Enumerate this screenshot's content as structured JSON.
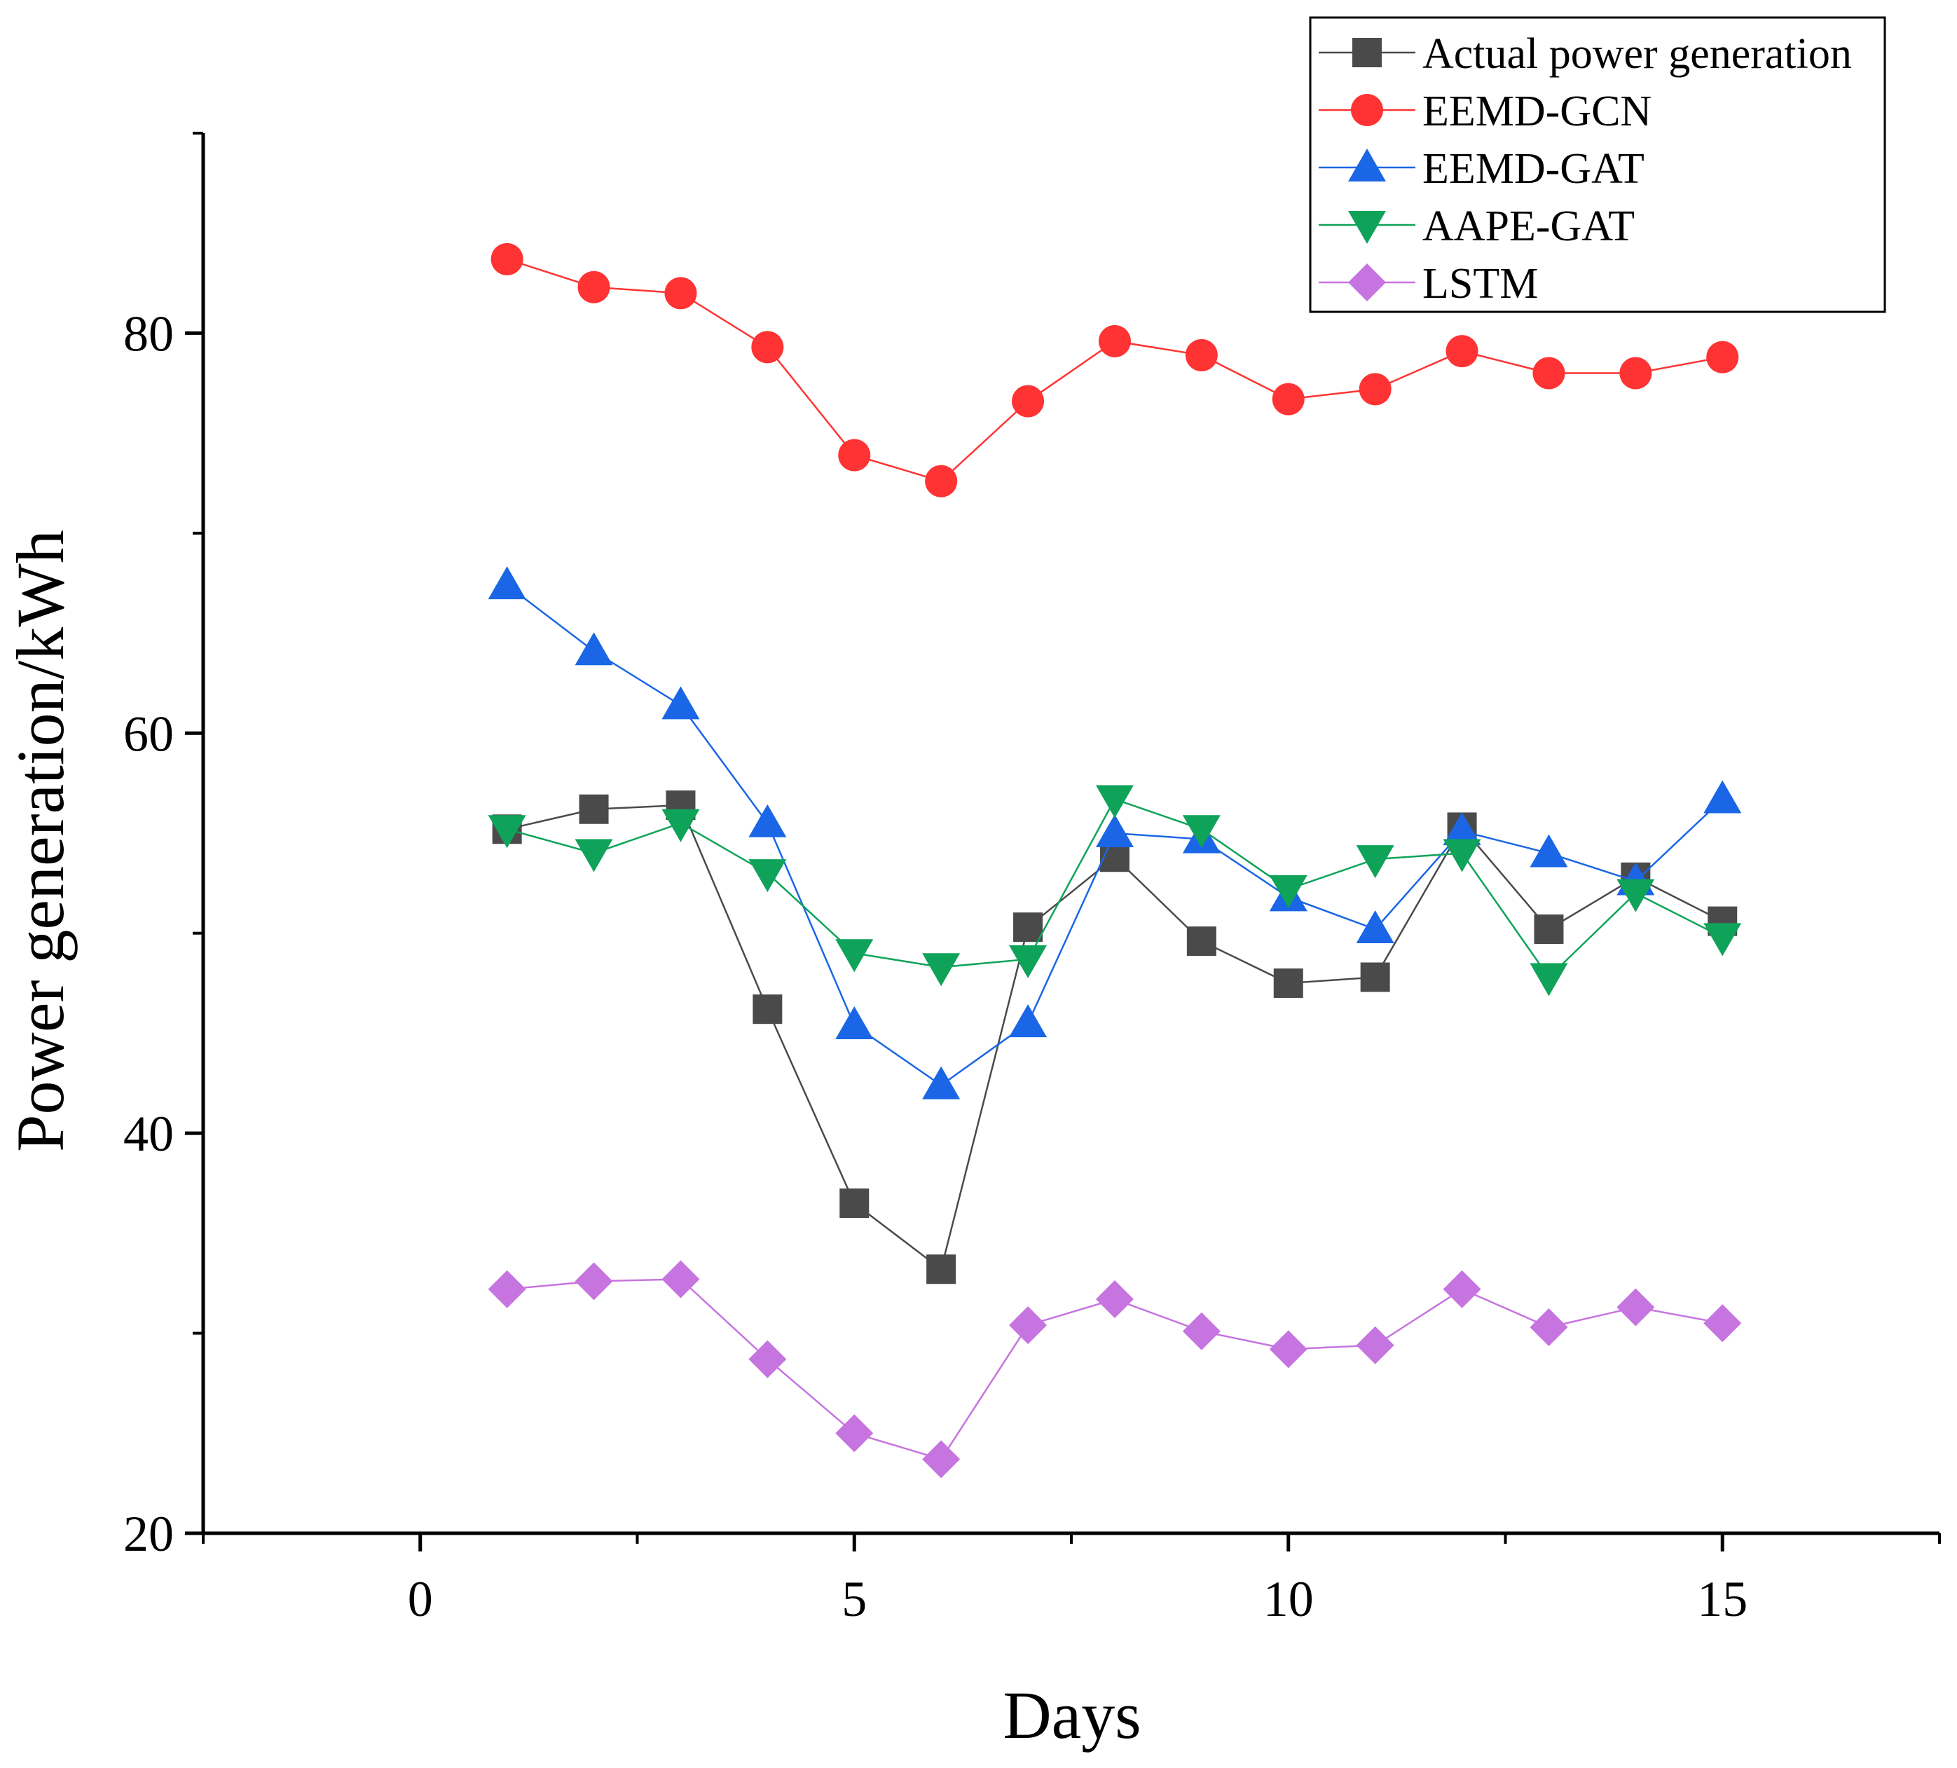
{
  "chart_data": {
    "type": "line",
    "title": "",
    "xlabel": "Days",
    "ylabel": "Power generation/kWh",
    "xlim": [
      -2.5,
      17.5
    ],
    "ylim": [
      20,
      90
    ],
    "x_ticks": [
      0,
      5,
      10,
      15
    ],
    "x_tick_labels": [
      "0",
      "5",
      "10",
      "15"
    ],
    "y_ticks": [
      20,
      40,
      60,
      80
    ],
    "y_tick_labels": [
      "20",
      "40",
      "60",
      "80"
    ],
    "grid": false,
    "legend_position": "top-right",
    "x": [
      1,
      2,
      3,
      4,
      5,
      6,
      7,
      8,
      9,
      10,
      11,
      12,
      13,
      14,
      15
    ],
    "series": [
      {
        "name": "Actual power generation",
        "color": "#4a4a4a",
        "marker": "square",
        "values": [
          55.2,
          56.2,
          56.4,
          46.2,
          36.5,
          33.2,
          50.3,
          53.8,
          49.6,
          47.5,
          47.8,
          55.3,
          50.2,
          52.8,
          50.6
        ]
      },
      {
        "name": "EEMD-GCN",
        "color": "#ff3333",
        "marker": "circle",
        "values": [
          83.7,
          82.3,
          82.0,
          79.3,
          73.9,
          72.6,
          76.6,
          79.6,
          78.9,
          76.7,
          77.2,
          79.1,
          78.0,
          78.0,
          78.8
        ]
      },
      {
        "name": "EEMD-GAT",
        "color": "#1a66e6",
        "marker": "triangle-up",
        "values": [
          67.4,
          64.1,
          61.4,
          55.5,
          45.4,
          42.4,
          45.5,
          55.0,
          54.7,
          51.8,
          50.2,
          55.1,
          54.0,
          52.6,
          56.7
        ]
      },
      {
        "name": "AAPE-GAT",
        "color": "#0fa35a",
        "marker": "triangle-down",
        "values": [
          55.2,
          54.0,
          55.5,
          53.0,
          49.0,
          48.3,
          48.7,
          56.7,
          55.2,
          52.2,
          53.7,
          54.0,
          47.8,
          52.0,
          49.8
        ]
      },
      {
        "name": "LSTM",
        "color": "#c674e0",
        "marker": "diamond",
        "values": [
          32.2,
          32.6,
          32.7,
          28.7,
          25.0,
          23.7,
          30.4,
          31.7,
          30.1,
          29.2,
          29.4,
          32.2,
          30.3,
          31.3,
          30.5
        ]
      }
    ]
  }
}
